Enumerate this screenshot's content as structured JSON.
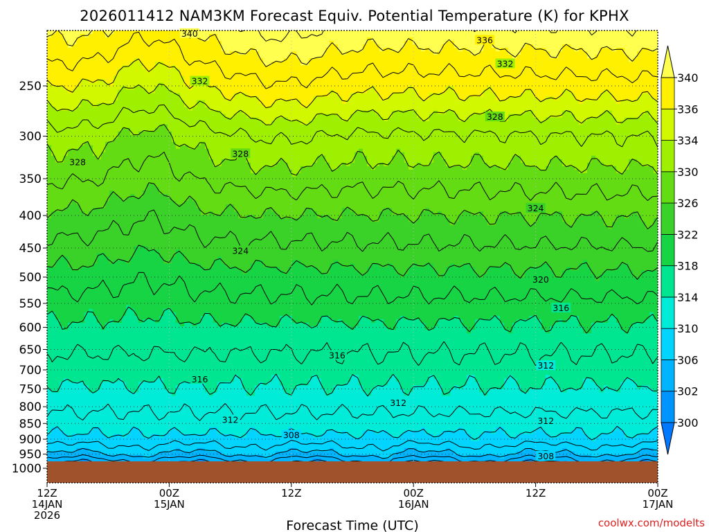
{
  "chart_data": {
    "type": "contour-time-height",
    "title": "2026011412 NAM3KM Forecast Equiv. Potential Temperature (K) for KPHX",
    "xlabel": "Forecast Time (UTC)",
    "ylabel": "",
    "y_scale": "log-pressure",
    "y_range_hPa": [
      1000,
      200
    ],
    "y_ticks": [
      {
        "value": 250,
        "label": "250"
      },
      {
        "value": 300,
        "label": "300"
      },
      {
        "value": 350,
        "label": "350"
      },
      {
        "value": 400,
        "label": "400"
      },
      {
        "value": 450,
        "label": "450"
      },
      {
        "value": 500,
        "label": "500"
      },
      {
        "value": 550,
        "label": "550"
      },
      {
        "value": 600,
        "label": "600"
      },
      {
        "value": 650,
        "label": "650"
      },
      {
        "value": 700,
        "label": "700"
      },
      {
        "value": 750,
        "label": "750"
      },
      {
        "value": 800,
        "label": "800"
      },
      {
        "value": 850,
        "label": "850"
      },
      {
        "value": 900,
        "label": "900"
      },
      {
        "value": 950,
        "label": "950"
      },
      {
        "value": 1000,
        "label": "1000"
      }
    ],
    "x_ticks": [
      {
        "hour": 0,
        "line1": "12Z",
        "line2": "14JAN",
        "line3": "2026"
      },
      {
        "hour": 12,
        "line1": "00Z",
        "line2": "15JAN",
        "line3": ""
      },
      {
        "hour": 24,
        "line1": "12Z",
        "line2": "",
        "line3": ""
      },
      {
        "hour": 36,
        "line1": "00Z",
        "line2": "16JAN",
        "line3": ""
      },
      {
        "hour": 48,
        "line1": "12Z",
        "line2": "",
        "line3": ""
      },
      {
        "hour": 60,
        "line1": "00Z",
        "line2": "17JAN",
        "line3": ""
      }
    ],
    "x_range_hours": [
      0,
      60
    ],
    "grid": "dotted",
    "colorbar": {
      "levels": [
        300,
        302,
        306,
        310,
        314,
        318,
        322,
        326,
        330,
        334,
        336,
        340
      ],
      "labels": [
        "300",
        "302",
        "306",
        "310",
        "314",
        "318",
        "322",
        "326",
        "330",
        "334",
        "336",
        "340"
      ],
      "colors": [
        "#0078ff",
        "#0094ff",
        "#00b4ff",
        "#00d4ff",
        "#00ecd8",
        "#00e690",
        "#16d444",
        "#3ad228",
        "#64dc14",
        "#9ef000",
        "#d2f800",
        "#fff000",
        "#ffff50"
      ]
    },
    "contours": [
      {
        "value": 340,
        "label": "340",
        "label_hour": 14.0,
        "label_p": 207
      },
      {
        "value": 336,
        "label": "336",
        "label_hour": 43.0,
        "label_p": 212
      },
      {
        "value": 332,
        "label": "332",
        "label_hour": 15.0,
        "label_p": 246
      },
      {
        "value": 332,
        "label": "332",
        "label_hour": 45.0,
        "label_p": 231
      },
      {
        "value": 328,
        "label": "328",
        "label_hour": 3.0,
        "label_p": 330
      },
      {
        "value": 328,
        "label": "328",
        "label_hour": 19.0,
        "label_p": 320
      },
      {
        "value": 328,
        "label": "328",
        "label_hour": 44.0,
        "label_p": 280
      },
      {
        "value": 324,
        "label": "324",
        "label_hour": 19.0,
        "label_p": 455
      },
      {
        "value": 324,
        "label": "324",
        "label_hour": 48.0,
        "label_p": 390
      },
      {
        "value": 320,
        "label": "320",
        "label_hour": 48.5,
        "label_p": 505
      },
      {
        "value": 316,
        "label": "316",
        "label_hour": 50.5,
        "label_p": 560
      },
      {
        "value": 316,
        "label": "316",
        "label_hour": 28.5,
        "label_p": 665
      },
      {
        "value": 316,
        "label": "316",
        "label_hour": 15.0,
        "label_p": 725
      },
      {
        "value": 312,
        "label": "312",
        "label_hour": 49.0,
        "label_p": 690
      },
      {
        "value": 312,
        "label": "312",
        "label_hour": 34.5,
        "label_p": 790
      },
      {
        "value": 312,
        "label": "312",
        "label_hour": 18.0,
        "label_p": 840
      },
      {
        "value": 312,
        "label": "312",
        "label_hour": 49.0,
        "label_p": 843
      },
      {
        "value": 308,
        "label": "308",
        "label_hour": 24.0,
        "label_p": 888
      },
      {
        "value": 308,
        "label": "308",
        "label_hour": 49.0,
        "label_p": 958
      }
    ],
    "terrain": {
      "color": "#a0522d",
      "top_p": 970
    }
  },
  "credit": "coolwx.com/modelts"
}
